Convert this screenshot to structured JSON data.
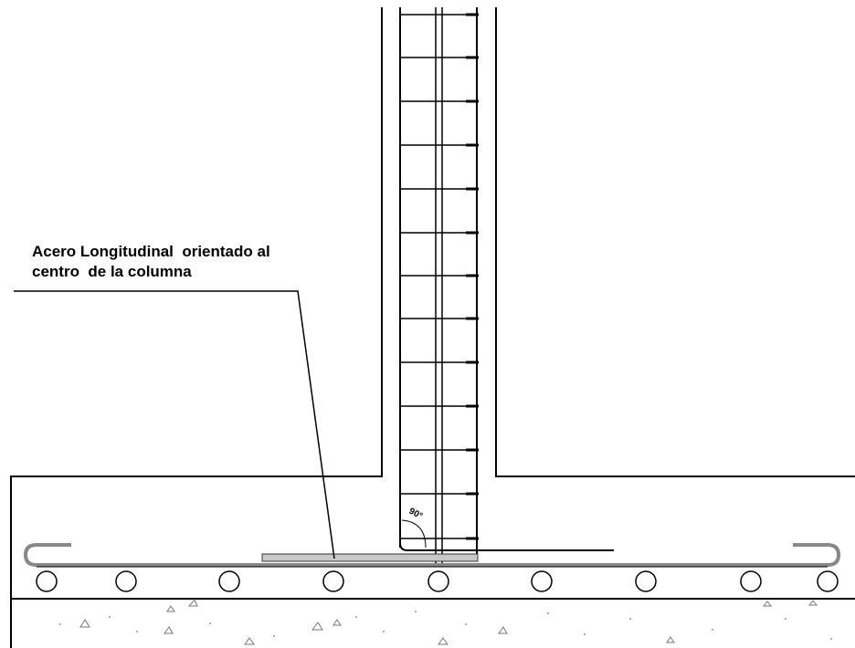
{
  "annotation": {
    "line1": "Acero Longitudinal  orientado al",
    "line2": "centro  de la columna"
  },
  "angle_label": "90°",
  "colors": {
    "line": "#000000",
    "steel": "#777777",
    "background": "#ffffff"
  }
}
